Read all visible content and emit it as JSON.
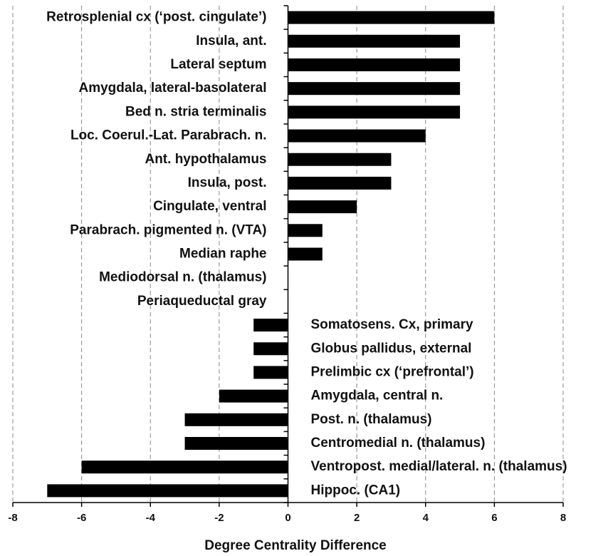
{
  "chart_data": {
    "type": "bar",
    "orientation": "horizontal",
    "xlabel": "Degree Centrality Difference",
    "categories": [
      "Retrosplenial cx (‘post. cingulate’)",
      "Insula, ant.",
      "Lateral septum",
      "Amygdala, lateral-basolateral",
      "Bed n. stria terminalis",
      "Loc. Coerul.-Lat. Parabrach. n.",
      "Ant. hypothalamus",
      "Insula, post.",
      "Cingulate, ventral",
      "Parabrach. pigmented n. (VTA)",
      "Median raphe",
      "Mediodorsal n. (thalamus)",
      "Periaqueductal gray",
      "Somatosens. Cx, primary",
      "Globus pallidus, external",
      "Prelimbic cx (‘prefrontal’)",
      "Amygdala, central n.",
      "Post. n. (thalamus)",
      "Centromedial n. (thalamus)",
      "Ventropost. medial/lateral. n. (thalamus)",
      "Hippoc. (CA1)"
    ],
    "values": [
      6,
      5,
      5,
      5,
      5,
      4,
      3,
      3,
      2,
      1,
      1,
      0,
      0,
      -1,
      -1,
      -1,
      -2,
      -3,
      -3,
      -6,
      -7
    ],
    "color": "#000000",
    "xlim": [
      -8,
      8
    ],
    "xticks": [
      -8,
      -6,
      -4,
      -2,
      0,
      2,
      4,
      6,
      8
    ],
    "grid": true
  }
}
